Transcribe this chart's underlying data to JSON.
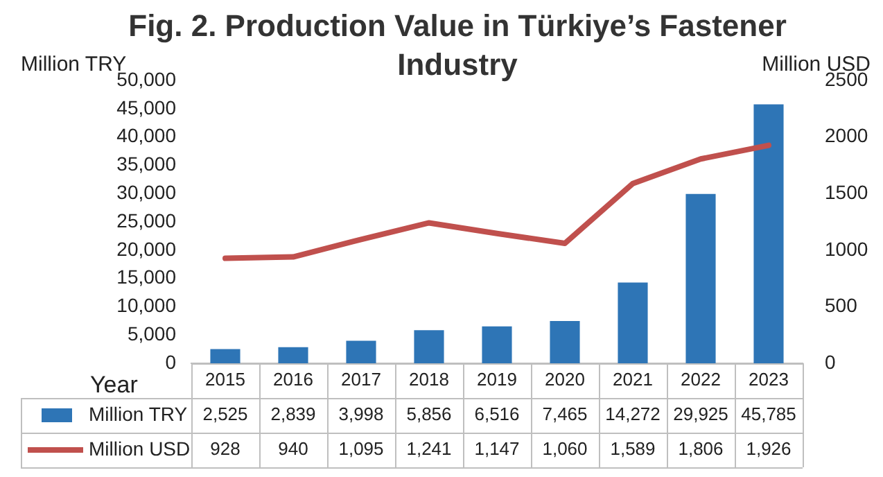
{
  "chart_data": {
    "type": "bar",
    "title": "Fig. 2. Production Value in Türkiye’s Fastener Industry",
    "xlabel": "Year",
    "ylabel": "Million TRY",
    "y2label": "Million USD",
    "categories": [
      "2015",
      "2016",
      "2017",
      "2018",
      "2019",
      "2020",
      "2021",
      "2022",
      "2023"
    ],
    "series": [
      {
        "name": "Million TRY",
        "color": "#2e75b6",
        "values": [
          2525,
          2839,
          3998,
          5856,
          6516,
          7465,
          14272,
          29925,
          45785
        ],
        "value_labels": [
          "2,525",
          "2,839",
          "3,998",
          "5,856",
          "6,516",
          "7,465",
          "14,272",
          "29,925",
          "45,785"
        ]
      },
      {
        "name": "Million USD",
        "type": "line",
        "axis": "y2",
        "color": "#c0504d",
        "values": [
          928,
          940,
          1095,
          1241,
          1147,
          1060,
          1589,
          1806,
          1926
        ],
        "value_labels": [
          "928",
          "940",
          "1,095",
          "1,241",
          "1,147",
          "1,060",
          "1,589",
          "1,806",
          "1,926"
        ]
      }
    ],
    "ylim": [
      0,
      50000
    ],
    "yticks": [
      0,
      {
        "value": 5000,
        "label": "5,000"
      },
      {
        "value": 10000,
        "label": "10,000"
      },
      {
        "value": 15000,
        "label": "15,000"
      },
      {
        "value": 20000,
        "label": "20,000"
      },
      {
        "value": 25000,
        "label": "25,000"
      },
      {
        "value": 30000,
        "label": "30,000"
      },
      {
        "value": 35000,
        "label": "35,000"
      },
      {
        "value": 40000,
        "label": "40,000"
      },
      {
        "value": 45000,
        "label": "45,000"
      },
      {
        "value": 50000,
        "label": "50,000"
      }
    ],
    "y2lim": [
      0,
      2500
    ],
    "y2ticks": [
      0,
      500,
      1000,
      1500,
      2000,
      2500
    ],
    "legend": "bottom",
    "marker": "none",
    "line_style": "solid"
  }
}
